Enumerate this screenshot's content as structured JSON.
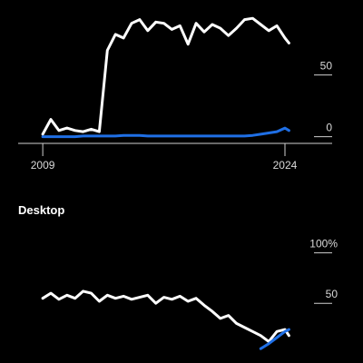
{
  "chart_data": [
    {
      "type": "line",
      "title": "",
      "x": [
        2009,
        2009.5,
        2010,
        2010.5,
        2011,
        2011.5,
        2012,
        2012.5,
        2013,
        2013.5,
        2014,
        2014.5,
        2015,
        2015.5,
        2016,
        2016.5,
        2017,
        2017.5,
        2018,
        2018.5,
        2019,
        2019.5,
        2020,
        2020.5,
        2021,
        2021.5,
        2022,
        2022.5,
        2023,
        2023.5,
        2024,
        2024.25
      ],
      "xlim": [
        2008.6,
        2024.9
      ],
      "ylim": [
        -4,
        105
      ],
      "yticks": [
        {
          "value": 50,
          "label": "50"
        },
        {
          "value": 0,
          "label": "0"
        }
      ],
      "xticks": [
        {
          "value": 2009,
          "label": "2009"
        },
        {
          "value": 2024,
          "label": "2024"
        }
      ],
      "series": [
        {
          "color": "#ffffff",
          "values": [
            2,
            14,
            5,
            7,
            5,
            4,
            6,
            4,
            70,
            83,
            80,
            92,
            95,
            86,
            93,
            92,
            87,
            90,
            75,
            92,
            85,
            91,
            88,
            82,
            88,
            95,
            96,
            91,
            86,
            90,
            80,
            76
          ]
        },
        {
          "color": "#1f6fe5",
          "values": [
            0,
            0,
            0,
            0,
            0,
            0.5,
            0.5,
            0.5,
            0.5,
            0.5,
            1,
            1,
            1,
            0.5,
            0.5,
            0.5,
            0.5,
            0.5,
            0.5,
            0.5,
            0.5,
            0.5,
            0.5,
            0.5,
            0.5,
            0.5,
            1,
            2,
            3,
            4,
            7,
            5
          ]
        }
      ]
    },
    {
      "type": "line",
      "title": "Desktop",
      "x": [
        2009,
        2009.5,
        2010,
        2010.5,
        2011,
        2011.5,
        2012,
        2012.5,
        2013,
        2013.5,
        2014,
        2014.5,
        2015,
        2015.5,
        2016,
        2016.5,
        2017,
        2017.5,
        2018,
        2018.5,
        2019,
        2019.5,
        2020,
        2020.5,
        2021,
        2021.5,
        2022,
        2022.5,
        2023,
        2023.5,
        2024,
        2024.25
      ],
      "xlim": [
        2008.6,
        2024.9
      ],
      "ylim": [
        -2,
        115
      ],
      "yticks": [
        {
          "value": 100,
          "label": "100%"
        },
        {
          "value": 50,
          "label": "50"
        }
      ],
      "xticks": [],
      "series": [
        {
          "color": "#ffffff",
          "values": [
            55,
            60,
            54,
            58,
            55,
            62,
            60,
            52,
            58,
            55,
            57,
            54,
            56,
            58,
            50,
            56,
            54,
            57,
            52,
            55,
            48,
            42,
            35,
            38,
            30,
            26,
            22,
            18,
            12,
            22,
            24,
            18
          ]
        },
        {
          "color": "#1f6fe5",
          "values": [
            null,
            null,
            null,
            null,
            null,
            null,
            null,
            null,
            null,
            null,
            null,
            null,
            null,
            null,
            null,
            null,
            null,
            null,
            null,
            null,
            null,
            null,
            null,
            null,
            null,
            null,
            null,
            5,
            10,
            16,
            22,
            24
          ]
        }
      ]
    }
  ]
}
